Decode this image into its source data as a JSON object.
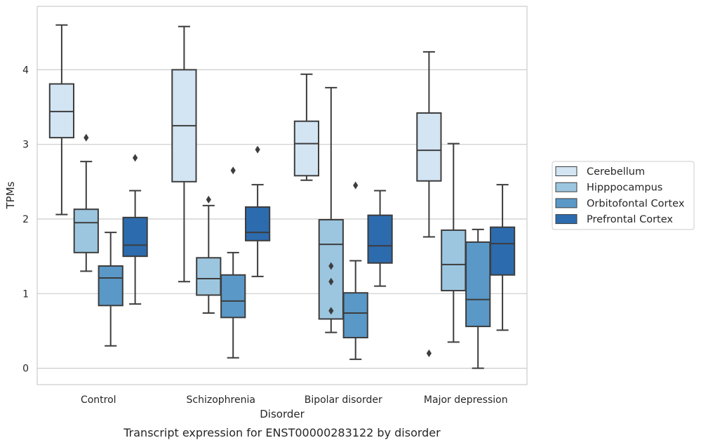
{
  "caption": "Transcript expression for ENST00000283122 by disorder",
  "chart_data": {
    "type": "box",
    "xlabel": "Disorder",
    "ylabel": "TPMs",
    "ylim": [
      -0.22,
      4.85
    ],
    "yticks": [
      0,
      1,
      2,
      3,
      4
    ],
    "grid": "horizontal",
    "legend_position": "right",
    "categories": [
      "Control",
      "Schizophrenia",
      "Bipolar disorder",
      "Major depression"
    ],
    "series": [
      {
        "name": "Cerebellum",
        "color": "#d3e4f3",
        "boxes": [
          {
            "whisker_low": 2.06,
            "q1": 3.09,
            "median": 3.44,
            "q3": 3.81,
            "whisker_high": 4.6,
            "outliers": []
          },
          {
            "whisker_low": 1.16,
            "q1": 2.5,
            "median": 3.25,
            "q3": 4.0,
            "whisker_high": 4.58,
            "outliers": []
          },
          {
            "whisker_low": 2.52,
            "q1": 2.58,
            "median": 3.01,
            "q3": 3.31,
            "whisker_high": 3.94,
            "outliers": []
          },
          {
            "whisker_low": 1.76,
            "q1": 2.51,
            "median": 2.92,
            "q3": 3.42,
            "whisker_high": 4.24,
            "outliers": [
              0.2
            ]
          }
        ]
      },
      {
        "name": "Hipppocampus",
        "color": "#9cc6e0",
        "boxes": [
          {
            "whisker_low": 1.3,
            "q1": 1.55,
            "median": 1.95,
            "q3": 2.13,
            "whisker_high": 2.77,
            "outliers": [
              3.09
            ]
          },
          {
            "whisker_low": 0.74,
            "q1": 0.98,
            "median": 1.2,
            "q3": 1.48,
            "whisker_high": 2.18,
            "outliers": [
              2.26
            ]
          },
          {
            "whisker_low": 0.48,
            "q1": 0.66,
            "median": 1.66,
            "q3": 1.99,
            "whisker_high": 3.76,
            "outliers": [
              1.37,
              1.16,
              0.77
            ]
          },
          {
            "whisker_low": 0.35,
            "q1": 1.04,
            "median": 1.39,
            "q3": 1.85,
            "whisker_high": 3.01,
            "outliers": []
          }
        ]
      },
      {
        "name": "Orbitofontal Cortex",
        "color": "#5a98c7",
        "boxes": [
          {
            "whisker_low": 0.3,
            "q1": 0.84,
            "median": 1.21,
            "q3": 1.37,
            "whisker_high": 1.82,
            "outliers": []
          },
          {
            "whisker_low": 0.14,
            "q1": 0.68,
            "median": 0.9,
            "q3": 1.25,
            "whisker_high": 1.55,
            "outliers": [
              2.65
            ]
          },
          {
            "whisker_low": 0.12,
            "q1": 0.41,
            "median": 0.74,
            "q3": 1.01,
            "whisker_high": 1.44,
            "outliers": [
              2.45
            ]
          },
          {
            "whisker_low": 0.0,
            "q1": 0.56,
            "median": 0.92,
            "q3": 1.69,
            "whisker_high": 1.86,
            "outliers": []
          }
        ]
      },
      {
        "name": "Prefrontal Cortex",
        "color": "#2c6bae",
        "boxes": [
          {
            "whisker_low": 0.86,
            "q1": 1.5,
            "median": 1.65,
            "q3": 2.02,
            "whisker_high": 2.38,
            "outliers": [
              2.82
            ]
          },
          {
            "whisker_low": 1.23,
            "q1": 1.71,
            "median": 1.82,
            "q3": 2.16,
            "whisker_high": 2.46,
            "outliers": [
              2.93
            ]
          },
          {
            "whisker_low": 1.1,
            "q1": 1.41,
            "median": 1.64,
            "q3": 2.05,
            "whisker_high": 2.38,
            "outliers": []
          },
          {
            "whisker_low": 0.51,
            "q1": 1.25,
            "median": 1.67,
            "q3": 1.89,
            "whisker_high": 2.46,
            "outliers": []
          }
        ]
      }
    ]
  }
}
